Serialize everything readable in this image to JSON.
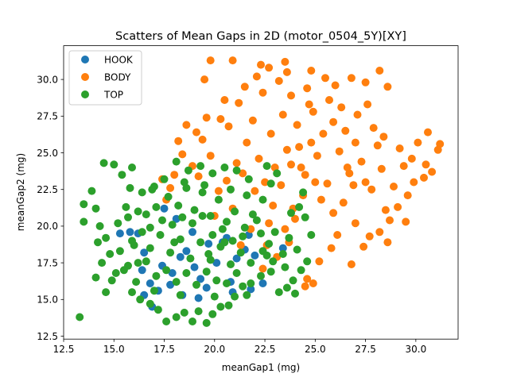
{
  "chart_data": {
    "type": "scatter",
    "title": "Scatters of Mean Gaps in 2D (motor_0504_5Y)[XY]",
    "xlabel": "meanGap1 (mg)",
    "ylabel": "meanGap2 (mg)",
    "xlim": [
      12.5,
      32.1
    ],
    "ylim": [
      12.3,
      32.3
    ],
    "xticks": [
      "12.5",
      "15.0",
      "17.5",
      "20.0",
      "22.5",
      "25.0",
      "27.5",
      "30.0"
    ],
    "xtick_values": [
      12.5,
      15.0,
      17.5,
      20.0,
      22.5,
      25.0,
      27.5,
      30.0
    ],
    "yticks": [
      "12.5",
      "15.0",
      "17.5",
      "20.0",
      "22.5",
      "25.0",
      "27.5",
      "30.0"
    ],
    "ytick_values": [
      12.5,
      15.0,
      17.5,
      20.0,
      22.5,
      25.0,
      27.5,
      30.0
    ],
    "grid": false,
    "legend_position": "top-left",
    "series": [
      {
        "name": "HOOK",
        "color": "#1f77b4",
        "points": [
          [
            16.2,
            19.5
          ],
          [
            16.8,
            16.1
          ],
          [
            17.2,
            15.6
          ],
          [
            17.9,
            16.8
          ],
          [
            18.3,
            17.9
          ],
          [
            18.6,
            18.3
          ],
          [
            19.0,
            17.2
          ],
          [
            19.3,
            16.4
          ],
          [
            19.7,
            18.8
          ],
          [
            20.1,
            17.5
          ],
          [
            20.4,
            18.9
          ],
          [
            20.8,
            16.2
          ],
          [
            21.1,
            17.8
          ],
          [
            21.5,
            18.4
          ],
          [
            18.1,
            20.5
          ],
          [
            17.5,
            21.2
          ],
          [
            16.5,
            18.2
          ],
          [
            19.2,
            15.1
          ],
          [
            18.4,
            15.3
          ],
          [
            16.9,
            14.5
          ],
          [
            16.5,
            15.3
          ],
          [
            22.4,
            16.1
          ],
          [
            21.8,
            15.7
          ],
          [
            23.4,
            18.5
          ],
          [
            22.0,
            18.0
          ],
          [
            15.8,
            19.6
          ],
          [
            15.3,
            19.5
          ],
          [
            18.9,
            19.6
          ],
          [
            20.6,
            19.2
          ],
          [
            17.4,
            17.3
          ],
          [
            19.6,
            15.8
          ],
          [
            20.9,
            15.5
          ],
          [
            21.7,
            19.4
          ],
          [
            17.8,
            16.0
          ],
          [
            16.4,
            17.0
          ]
        ]
      },
      {
        "name": "BODY",
        "color": "#ff7f0e",
        "points": [
          [
            19.8,
            31.3
          ],
          [
            20.9,
            31.3
          ],
          [
            23.5,
            31.2
          ],
          [
            19.5,
            30.0
          ],
          [
            22.1,
            30.2
          ],
          [
            22.7,
            30.8
          ],
          [
            23.6,
            30.5
          ],
          [
            24.8,
            30.6
          ],
          [
            26.8,
            30.1
          ],
          [
            27.5,
            29.8
          ],
          [
            28.2,
            30.6
          ],
          [
            28.6,
            29.5
          ],
          [
            18.2,
            25.8
          ],
          [
            18.0,
            23.5
          ],
          [
            17.8,
            22.6
          ],
          [
            18.9,
            24.1
          ],
          [
            17.6,
            21.8
          ],
          [
            17.4,
            23.2
          ],
          [
            19.1,
            26.4
          ],
          [
            20.3,
            27.3
          ],
          [
            21.2,
            28.4
          ],
          [
            22.4,
            29.1
          ],
          [
            23.8,
            28.9
          ],
          [
            24.6,
            29.4
          ],
          [
            25.7,
            28.6
          ],
          [
            26.3,
            28.1
          ],
          [
            27.1,
            27.6
          ],
          [
            27.9,
            26.7
          ],
          [
            28.4,
            26.1
          ],
          [
            29.2,
            25.3
          ],
          [
            29.8,
            24.6
          ],
          [
            30.5,
            24.2
          ],
          [
            31.1,
            25.2
          ],
          [
            31.2,
            25.6
          ],
          [
            30.6,
            26.4
          ],
          [
            30.8,
            23.7
          ],
          [
            30.4,
            23.3
          ],
          [
            29.6,
            22.1
          ],
          [
            29.1,
            21.3
          ],
          [
            28.7,
            20.4
          ],
          [
            28.2,
            19.6
          ],
          [
            27.4,
            18.6
          ],
          [
            26.8,
            17.4
          ],
          [
            25.8,
            18.5
          ],
          [
            25.2,
            17.6
          ],
          [
            24.6,
            16.4
          ],
          [
            24.5,
            15.9
          ],
          [
            24.9,
            16.1
          ],
          [
            23.1,
            17.9
          ],
          [
            22.6,
            18.7
          ],
          [
            21.8,
            19.8
          ],
          [
            22.9,
            21.4
          ],
          [
            23.3,
            22.8
          ],
          [
            23.8,
            24.2
          ],
          [
            24.2,
            25.4
          ],
          [
            24.5,
            23.5
          ],
          [
            25.1,
            24.8
          ],
          [
            25.6,
            22.9
          ],
          [
            26.2,
            25.1
          ],
          [
            26.7,
            23.6
          ],
          [
            27.3,
            24.4
          ],
          [
            27.8,
            22.5
          ],
          [
            28.3,
            23.9
          ],
          [
            22.2,
            24.6
          ],
          [
            21.6,
            25.7
          ],
          [
            21.1,
            24.3
          ],
          [
            20.6,
            23.1
          ],
          [
            20.2,
            22.4
          ],
          [
            19.8,
            24.8
          ],
          [
            19.4,
            25.9
          ],
          [
            20.7,
            26.8
          ],
          [
            21.9,
            27.2
          ],
          [
            22.8,
            26.3
          ],
          [
            23.4,
            27.6
          ],
          [
            24.1,
            26.9
          ],
          [
            24.9,
            27.8
          ],
          [
            25.4,
            26.3
          ],
          [
            25.9,
            27.1
          ],
          [
            26.5,
            26.5
          ],
          [
            27.0,
            25.7
          ],
          [
            22.5,
            23.0
          ],
          [
            23.0,
            24.0
          ],
          [
            23.6,
            25.2
          ],
          [
            24.3,
            24.0
          ],
          [
            24.8,
            25.7
          ],
          [
            25.3,
            21.8
          ],
          [
            25.9,
            20.9
          ],
          [
            26.4,
            21.6
          ],
          [
            27.0,
            20.2
          ],
          [
            26.1,
            19.4
          ],
          [
            24.0,
            20.5
          ],
          [
            23.5,
            19.8
          ],
          [
            22.0,
            22.4
          ],
          [
            21.4,
            23.6
          ],
          [
            20.9,
            21.2
          ],
          [
            24.4,
            22.1
          ],
          [
            26.9,
            22.8
          ],
          [
            28.9,
            22.7
          ],
          [
            29.4,
            24.1
          ],
          [
            28.1,
            25.5
          ],
          [
            27.6,
            28.3
          ],
          [
            26.0,
            29.6
          ],
          [
            21.5,
            29.5
          ],
          [
            20.5,
            28.6
          ],
          [
            19.6,
            27.4
          ],
          [
            18.6,
            26.9
          ],
          [
            18.4,
            24.9
          ],
          [
            19.2,
            23.4
          ],
          [
            24.7,
            28.3
          ],
          [
            23.2,
            29.9
          ],
          [
            22.3,
            31.0
          ],
          [
            25.5,
            30.1
          ],
          [
            29.5,
            20.3
          ],
          [
            28.6,
            18.9
          ],
          [
            27.7,
            19.3
          ],
          [
            23.7,
            18.9
          ],
          [
            22.4,
            17.1
          ],
          [
            21.3,
            18.7
          ],
          [
            20.0,
            20.7
          ],
          [
            22.7,
            20.2
          ],
          [
            23.9,
            21.2
          ],
          [
            25.0,
            23.0
          ],
          [
            26.6,
            24.0
          ],
          [
            27.5,
            23.0
          ],
          [
            28.5,
            21.1
          ],
          [
            29.9,
            23.0
          ],
          [
            30.1,
            25.7
          ]
        ]
      },
      {
        "name": "TOP",
        "color": "#2ca02c",
        "points": [
          [
            13.3,
            13.8
          ],
          [
            13.5,
            20.3
          ],
          [
            13.5,
            21.5
          ],
          [
            13.9,
            22.4
          ],
          [
            14.1,
            21.2
          ],
          [
            14.3,
            20.0
          ],
          [
            14.6,
            19.2
          ],
          [
            14.8,
            18.1
          ],
          [
            14.4,
            17.5
          ],
          [
            14.9,
            16.3
          ],
          [
            14.1,
            16.5
          ],
          [
            14.6,
            15.5
          ],
          [
            14.5,
            24.3
          ],
          [
            15.0,
            24.2
          ],
          [
            15.4,
            23.5
          ],
          [
            15.9,
            24.0
          ],
          [
            15.8,
            22.6
          ],
          [
            15.6,
            21.3
          ],
          [
            15.2,
            20.2
          ],
          [
            15.9,
            19.0
          ],
          [
            15.3,
            18.3
          ],
          [
            15.7,
            17.3
          ],
          [
            16.1,
            16.2
          ],
          [
            15.9,
            15.5
          ],
          [
            16.3,
            15.0
          ],
          [
            16.8,
            14.7
          ],
          [
            17.2,
            14.3
          ],
          [
            17.6,
            13.5
          ],
          [
            18.1,
            13.8
          ],
          [
            18.5,
            14.1
          ],
          [
            18.9,
            13.5
          ],
          [
            19.2,
            14.2
          ],
          [
            19.6,
            13.4
          ],
          [
            19.9,
            14.0
          ],
          [
            20.3,
            14.5
          ],
          [
            20.7,
            14.6
          ],
          [
            21.0,
            15.2
          ],
          [
            21.4,
            15.9
          ],
          [
            21.8,
            16.1
          ],
          [
            22.3,
            16.6
          ],
          [
            22.8,
            16.9
          ],
          [
            23.2,
            15.5
          ],
          [
            23.6,
            15.8
          ],
          [
            23.9,
            16.3
          ],
          [
            24.3,
            17.0
          ],
          [
            24.0,
            15.4
          ],
          [
            22.4,
            21.8
          ],
          [
            22.8,
            22.9
          ],
          [
            23.1,
            23.6
          ],
          [
            22.6,
            24.1
          ],
          [
            21.7,
            23.2
          ],
          [
            21.1,
            23.8
          ],
          [
            20.5,
            24.0
          ],
          [
            19.9,
            23.6
          ],
          [
            19.3,
            24.1
          ],
          [
            18.7,
            23.8
          ],
          [
            18.1,
            24.4
          ],
          [
            17.5,
            23.2
          ],
          [
            16.9,
            22.5
          ],
          [
            16.4,
            22.3
          ],
          [
            16.6,
            20.8
          ],
          [
            17.1,
            21.3
          ],
          [
            17.7,
            22.0
          ],
          [
            18.2,
            21.4
          ],
          [
            18.6,
            22.6
          ],
          [
            19.0,
            21.1
          ],
          [
            19.4,
            22.3
          ],
          [
            19.8,
            20.7
          ],
          [
            20.2,
            21.8
          ],
          [
            20.6,
            20.3
          ],
          [
            21.0,
            21.0
          ],
          [
            21.5,
            19.9
          ],
          [
            21.9,
            20.8
          ],
          [
            22.3,
            19.5
          ],
          [
            22.7,
            18.8
          ],
          [
            23.0,
            19.6
          ],
          [
            23.4,
            18.1
          ],
          [
            23.7,
            19.2
          ],
          [
            24.1,
            18.4
          ],
          [
            23.5,
            17.2
          ],
          [
            22.9,
            17.6
          ],
          [
            22.4,
            18.3
          ],
          [
            21.8,
            17.5
          ],
          [
            21.3,
            18.2
          ],
          [
            20.8,
            17.4
          ],
          [
            20.3,
            18.6
          ],
          [
            19.8,
            17.7
          ],
          [
            19.3,
            18.9
          ],
          [
            18.8,
            17.8
          ],
          [
            18.3,
            19.1
          ],
          [
            17.8,
            18.2
          ],
          [
            17.3,
            19.4
          ],
          [
            16.8,
            18.5
          ],
          [
            16.4,
            19.6
          ],
          [
            16.0,
            18.7
          ],
          [
            16.6,
            17.6
          ],
          [
            17.1,
            16.6
          ],
          [
            17.6,
            17.0
          ],
          [
            18.1,
            16.2
          ],
          [
            18.6,
            16.8
          ],
          [
            19.1,
            16.0
          ],
          [
            19.6,
            16.9
          ],
          [
            20.1,
            16.3
          ],
          [
            20.6,
            16.1
          ],
          [
            21.1,
            16.8
          ],
          [
            21.6,
            15.3
          ],
          [
            17.4,
            20.4
          ],
          [
            17.9,
            20.1
          ],
          [
            18.4,
            20.6
          ],
          [
            18.9,
            20.2
          ],
          [
            19.4,
            20.7
          ],
          [
            19.9,
            19.4
          ],
          [
            20.4,
            19.8
          ],
          [
            20.9,
            19.0
          ],
          [
            21.4,
            19.3
          ],
          [
            15.5,
            17.0
          ],
          [
            15.1,
            16.8
          ],
          [
            24.8,
            19.4
          ],
          [
            24.5,
            20.6
          ],
          [
            24.2,
            21.3
          ],
          [
            23.8,
            20.9
          ],
          [
            24.6,
            17.6
          ],
          [
            24.4,
            22.3
          ],
          [
            14.2,
            18.9
          ],
          [
            15.7,
            20.6
          ],
          [
            16.2,
            21.0
          ],
          [
            17.0,
            22.7
          ],
          [
            18.5,
            23.0
          ],
          [
            19.5,
            22.8
          ],
          [
            20.8,
            22.5
          ],
          [
            21.6,
            22.1
          ],
          [
            20.0,
            15.2
          ],
          [
            18.3,
            15.3
          ],
          [
            17.0,
            15.6
          ],
          [
            16.2,
            17.5
          ],
          [
            19.7,
            18.1
          ],
          [
            18.0,
            18.9
          ],
          [
            20.5,
            18.9
          ],
          [
            22.1,
            20.4
          ],
          [
            16.8,
            19.9
          ],
          [
            22.6,
            18.0
          ]
        ]
      }
    ]
  }
}
